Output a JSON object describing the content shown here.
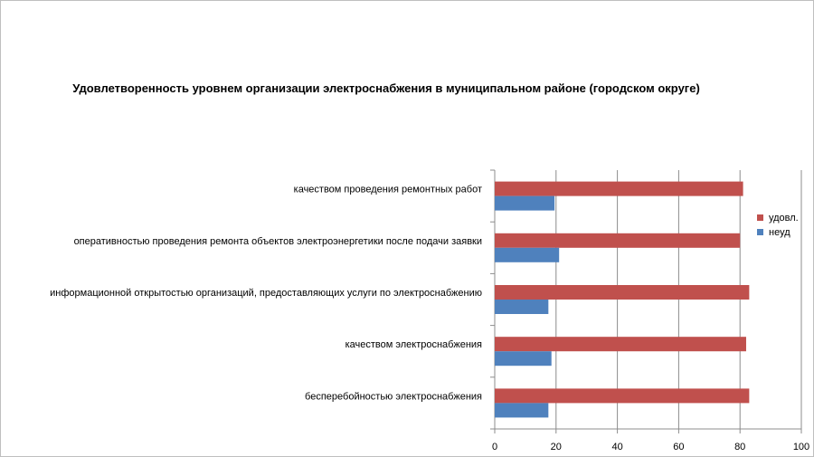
{
  "chart_data": {
    "type": "bar",
    "orientation": "horizontal",
    "title": "Удовлетворенность уровнем организации электроснабжения в муниципальном районе (городском округе)",
    "categories": [
      "качеством проведения ремонтных работ",
      "оперативностью проведения ремонта объектов электроэнергетики после подачи заявки",
      "информационной открытостью организаций, предоставляющих услуги по электроснабжению",
      "качеством электроснабжения",
      "бесперебойностью электроснабжения"
    ],
    "series": [
      {
        "name": "удовл.",
        "color": "#c0504d",
        "values": [
          81,
          80,
          83,
          82,
          83
        ]
      },
      {
        "name": "неуд",
        "color": "#4f81bd",
        "values": [
          19.5,
          21,
          17.5,
          18.5,
          17.5
        ]
      }
    ],
    "xlim": [
      0,
      100
    ],
    "xticks": [
      "0",
      "20",
      "40",
      "60",
      "80",
      "100"
    ],
    "grid": true,
    "legend": "right"
  }
}
